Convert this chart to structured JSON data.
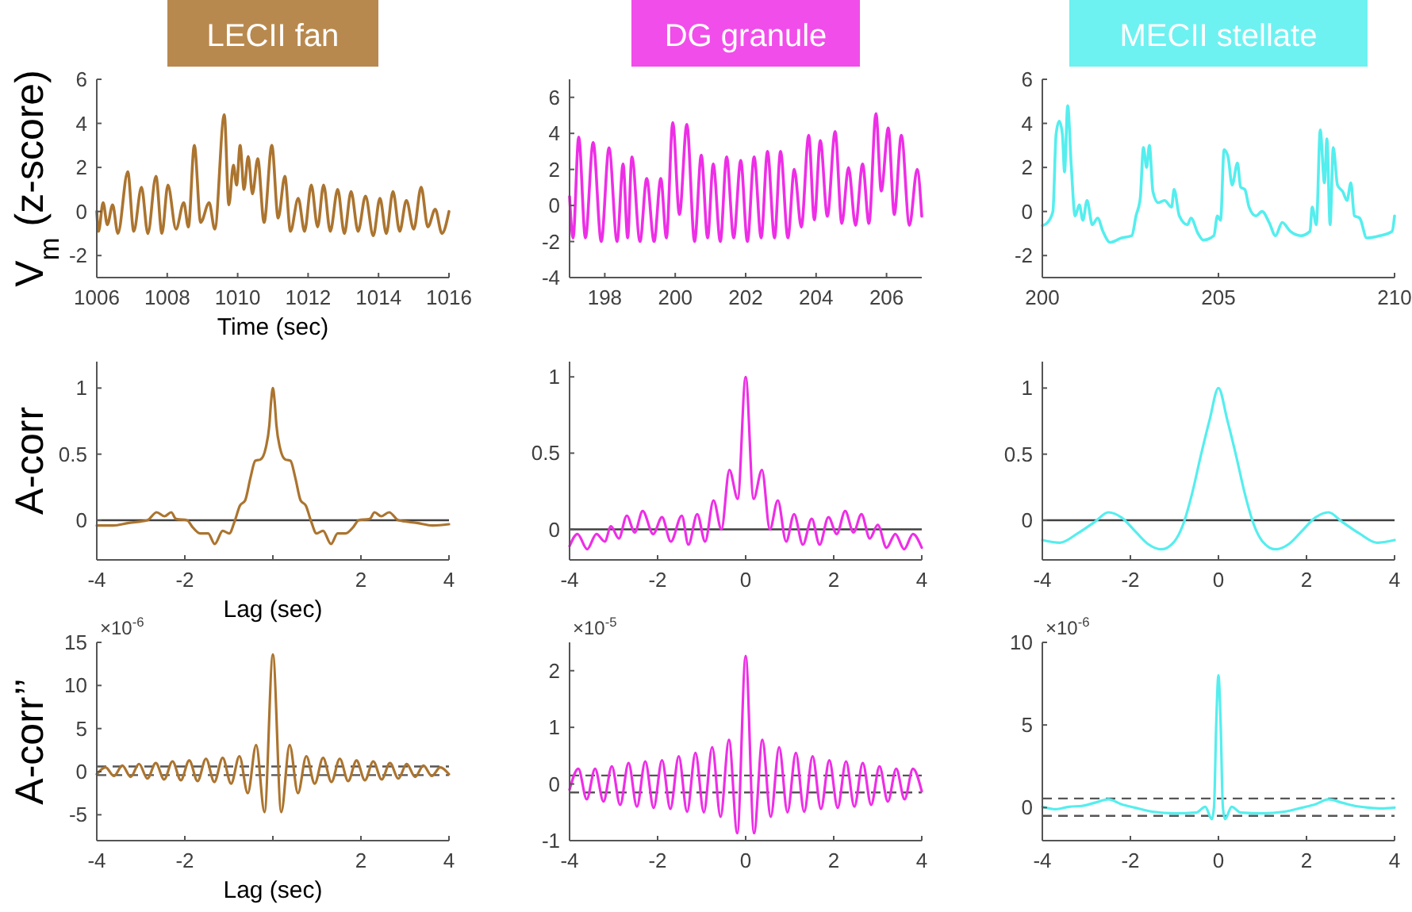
{
  "chart_data": [
    {
      "type": "line",
      "title": "LECII fan",
      "xlabel": "Time (sec)",
      "ylabel": "V$_{m}$ (z-score)",
      "xlim": [
        1006,
        1016
      ],
      "xticks": [
        1006,
        1008,
        1010,
        1012,
        1014,
        1016
      ],
      "ylim": [
        -3,
        6
      ],
      "yticks": [
        -2,
        0,
        2,
        4,
        6
      ],
      "series": [
        {
          "color": "#ab742f",
          "x": [
            1006,
            1006.05,
            1006.18,
            1006.3,
            1006.45,
            1006.6,
            1006.88,
            1007.05,
            1007.27,
            1007.45,
            1007.68,
            1007.85,
            1008.02,
            1008.25,
            1008.47,
            1008.6,
            1008.77,
            1008.95,
            1009.19,
            1009.35,
            1009.62,
            1009.75,
            1009.88,
            1009.97,
            1010.07,
            1010.18,
            1010.3,
            1010.42,
            1010.57,
            1010.75,
            1010.97,
            1011.15,
            1011.34,
            1011.5,
            1011.72,
            1011.9,
            1012.09,
            1012.27,
            1012.44,
            1012.63,
            1012.84,
            1013.03,
            1013.22,
            1013.42,
            1013.63,
            1013.85,
            1014.04,
            1014.22,
            1014.41,
            1014.6,
            1014.79,
            1015,
            1015.21,
            1015.4,
            1015.61,
            1015.8,
            1016
          ],
          "values": [
            0,
            -0.9,
            0.4,
            -0.6,
            0.3,
            -1,
            1.8,
            -0.9,
            1.1,
            -1,
            1.6,
            -1,
            1.2,
            -0.8,
            0.4,
            -0.7,
            3,
            -0.5,
            0.4,
            -0.8,
            4.4,
            0.3,
            2.1,
            1.2,
            3,
            1,
            2.5,
            0.8,
            2.4,
            -0.5,
            3,
            -0.3,
            1.6,
            -0.9,
            0.6,
            -0.9,
            1.2,
            -0.7,
            1.2,
            -0.9,
            1,
            -1,
            0.9,
            -0.9,
            0.7,
            -1.1,
            0.6,
            -1,
            0.9,
            -0.9,
            0.5,
            -0.8,
            1.1,
            -0.7,
            0.1,
            -1,
            0
          ]
        }
      ]
    },
    {
      "type": "line",
      "title": "DG granule",
      "xlim": [
        197,
        207
      ],
      "xticks": [
        198,
        200,
        202,
        204,
        206
      ],
      "ylim": [
        -4,
        7
      ],
      "yticks": [
        -4,
        -2,
        0,
        2,
        4,
        6
      ],
      "series": [
        {
          "color": "#ee2ee6",
          "x": [
            197,
            197.1,
            197.26,
            197.45,
            197.67,
            197.9,
            198.12,
            198.35,
            198.52,
            198.65,
            198.77,
            199,
            199.19,
            199.4,
            199.59,
            199.75,
            199.93,
            200.12,
            200.33,
            200.55,
            200.74,
            200.92,
            201.08,
            201.28,
            201.46,
            201.66,
            201.86,
            202.05,
            202.24,
            202.44,
            202.62,
            202.82,
            202.99,
            203.2,
            203.38,
            203.58,
            203.79,
            203.95,
            204.12,
            204.32,
            204.54,
            204.73,
            204.92,
            205.12,
            205.32,
            205.5,
            205.7,
            205.85,
            206.05,
            206.22,
            206.42,
            206.65,
            206.87,
            207
          ],
          "values": [
            0.5,
            -1.8,
            3.8,
            -1.8,
            3.5,
            -2,
            3.2,
            -2,
            2.3,
            -1.8,
            2.7,
            -2,
            1.5,
            -2,
            1.5,
            -1.8,
            4.6,
            -0.5,
            4.5,
            -2,
            2.8,
            -1.8,
            2.3,
            -2,
            2.7,
            -1.8,
            2.5,
            -2,
            2.7,
            -1.8,
            3,
            -1.8,
            3,
            -1.8,
            2,
            -1.2,
            3.9,
            -0.8,
            3.6,
            -0.6,
            4.1,
            -1,
            2.1,
            -1.1,
            2.3,
            -1,
            5.1,
            0.8,
            4.3,
            -0.5,
            3.9,
            -1.1,
            2,
            -0.6
          ]
        }
      ]
    },
    {
      "type": "line",
      "title": "MECII stellate",
      "xlim": [
        200,
        210
      ],
      "xticks": [
        200,
        205,
        210
      ],
      "ylim": [
        -3,
        6
      ],
      "yticks": [
        -2,
        0,
        2,
        4,
        6
      ],
      "series": [
        {
          "color": "#55eeee",
          "x": [
            200,
            200.15,
            200.3,
            200.39,
            200.48,
            200.57,
            200.63,
            200.72,
            200.82,
            200.93,
            201.05,
            201.15,
            201.27,
            201.42,
            201.57,
            201.72,
            201.92,
            202.25,
            202.54,
            202.66,
            202.78,
            202.87,
            202.96,
            203.04,
            203.14,
            203.29,
            203.47,
            203.67,
            203.74,
            203.89,
            204.12,
            204.22,
            204.42,
            204.57,
            204.87,
            204.97,
            205.06,
            205.16,
            205.27,
            205.39,
            205.54,
            205.63,
            205.75,
            205.87,
            206.06,
            206.24,
            206.44,
            206.62,
            206.81,
            207.04,
            207.34,
            207.6,
            207.66,
            207.78,
            207.89,
            208.01,
            208.08,
            208.17,
            208.26,
            208.38,
            208.53,
            208.65,
            208.76,
            208.86,
            209.01,
            209.21,
            209.58,
            209.93,
            210
          ],
          "values": [
            -0.64,
            -0.5,
            0,
            3.5,
            4.1,
            3.5,
            1.8,
            4.8,
            2.1,
            -0.2,
            0.3,
            -0.4,
            0.5,
            -0.6,
            -0.3,
            -0.9,
            -1.4,
            -1.2,
            -1.1,
            -0.2,
            0.6,
            2.9,
            2,
            3,
            0.9,
            0.4,
            0.5,
            0.2,
            1,
            -0.2,
            -0.6,
            -0.3,
            -1,
            -1.3,
            -1.1,
            -0.2,
            -0.4,
            2.8,
            2.5,
            1.2,
            2.2,
            1.1,
            1,
            0.2,
            -0.2,
            0,
            -0.5,
            -1.1,
            -0.5,
            -0.9,
            -1.1,
            -0.9,
            0.2,
            -0.6,
            3.7,
            1.3,
            3.3,
            -0.6,
            2.9,
            1.2,
            0.9,
            0.5,
            1.3,
            -0.2,
            -0.3,
            -1.2,
            -1.1,
            -0.9,
            -0.2
          ]
        }
      ]
    },
    {
      "type": "line",
      "xlabel": "Lag (sec)",
      "ylabel": "A-corr",
      "xlim": [
        -4,
        4
      ],
      "xticks": [
        -4,
        -2,
        {
          "value": 0,
          "label": null
        },
        2,
        4
      ],
      "ylim": [
        -0.3,
        1.2
      ],
      "yticks": [
        0,
        0.5,
        1
      ],
      "ref_lines": [
        {
          "axis": "y",
          "value": 0,
          "color": "#404040",
          "line_style": "solid"
        }
      ],
      "series": [
        {
          "color": "#ab742f",
          "x": [
            -4,
            -3.63,
            -3.27,
            -2.85,
            -2.64,
            -2.46,
            -2.31,
            -2.2,
            -1.95,
            -1.83,
            -1.65,
            -1.47,
            -1.32,
            -1.14,
            -0.99,
            -0.87,
            -0.75,
            -0.63,
            -0.51,
            -0.4,
            -0.28,
            -0.16,
            -0.08,
            -0.04,
            0,
            0.04,
            0.08,
            0.16,
            0.28,
            0.4,
            0.51,
            0.63,
            0.75,
            0.87,
            0.99,
            1.14,
            1.32,
            1.47,
            1.65,
            1.83,
            1.95,
            2.2,
            2.31,
            2.46,
            2.64,
            2.85,
            3.27,
            3.63,
            4
          ],
          "values": [
            -0.04,
            -0.04,
            -0.02,
            0,
            0.06,
            0.03,
            0.06,
            0.01,
            0,
            -0.05,
            -0.1,
            -0.1,
            -0.18,
            -0.08,
            -0.1,
            -0.01,
            0.11,
            0.15,
            0.32,
            0.45,
            0.46,
            0.55,
            0.72,
            0.9,
            1,
            0.9,
            0.72,
            0.55,
            0.46,
            0.45,
            0.32,
            0.15,
            0.11,
            -0.01,
            -0.1,
            -0.08,
            -0.18,
            -0.1,
            -0.1,
            -0.05,
            0,
            0.01,
            0.06,
            0.03,
            0.06,
            0,
            -0.02,
            -0.04,
            -0.03
          ]
        }
      ]
    },
    {
      "type": "line",
      "xlim": [
        -4,
        4
      ],
      "xticks": [
        -4,
        -2,
        0,
        2,
        4
      ],
      "ylim": [
        -0.2,
        1.1
      ],
      "yticks": [
        0,
        0.5,
        1
      ],
      "ref_lines": [
        {
          "axis": "y",
          "value": 0,
          "color": "#404040",
          "line_style": "solid"
        }
      ],
      "series": [
        {
          "color": "#ee2ee6",
          "x": [
            -4,
            -3.82,
            -3.6,
            -3.39,
            -3.2,
            -3.06,
            -2.88,
            -2.7,
            -2.52,
            -2.34,
            -2.1,
            -1.9,
            -1.7,
            -1.45,
            -1.3,
            -1.1,
            -0.92,
            -0.73,
            -0.55,
            -0.37,
            -0.18,
            0,
            0.18,
            0.37,
            0.55,
            0.73,
            0.92,
            1.1,
            1.3,
            1.5,
            1.68,
            1.88,
            2.07,
            2.26,
            2.45,
            2.63,
            2.82,
            3,
            3.2,
            3.4,
            3.6,
            3.8,
            4
          ],
          "values": [
            -0.11,
            -0.03,
            -0.13,
            -0.03,
            -0.08,
            0.02,
            -0.06,
            0.09,
            -0.02,
            0.12,
            -0.03,
            0.08,
            -0.08,
            0.09,
            -0.1,
            0.1,
            -0.08,
            0.19,
            0,
            0.39,
            0.2,
            1,
            0.2,
            0.39,
            0,
            0.19,
            -0.08,
            0.1,
            -0.1,
            0.07,
            -0.1,
            0.08,
            -0.03,
            0.12,
            -0.02,
            0.1,
            -0.06,
            0.03,
            -0.12,
            -0.03,
            -0.13,
            -0.03,
            -0.12
          ]
        }
      ]
    },
    {
      "type": "line",
      "xlim": [
        -4,
        4
      ],
      "xticks": [
        -4,
        -2,
        0,
        2,
        4
      ],
      "ylim": [
        -0.3,
        1.2
      ],
      "yticks": [
        0,
        0.5,
        1
      ],
      "ref_lines": [
        {
          "axis": "y",
          "value": 0,
          "color": "#404040",
          "line_style": "solid"
        }
      ],
      "series": [
        {
          "color": "#55eeee",
          "x": [
            -4,
            -3.6,
            -3.2,
            -2.8,
            -2.5,
            -2.2,
            -1.9,
            -1.6,
            -1.3,
            -1,
            -0.8,
            -0.6,
            -0.4,
            -0.2,
            0,
            0.2,
            0.4,
            0.6,
            0.8,
            1,
            1.3,
            1.6,
            1.9,
            2.2,
            2.5,
            2.8,
            3.2,
            3.6,
            4
          ],
          "values": [
            -0.15,
            -0.17,
            -0.1,
            -0.01,
            0.06,
            0.02,
            -0.08,
            -0.18,
            -0.22,
            -0.16,
            -0.03,
            0.2,
            0.49,
            0.76,
            1,
            0.76,
            0.49,
            0.2,
            -0.03,
            -0.16,
            -0.22,
            -0.18,
            -0.08,
            0.02,
            0.06,
            -0.01,
            -0.1,
            -0.17,
            -0.15
          ]
        }
      ]
    },
    {
      "type": "line",
      "xlabel": "Lag (sec)",
      "ylabel": "A-corr’’",
      "annotations": [
        "×10$^{-6}$"
      ],
      "xlim": [
        -4,
        4
      ],
      "xticks": [
        -4,
        -2,
        {
          "value": 0,
          "label": null
        },
        2,
        4
      ],
      "ylim": [
        -8,
        15
      ],
      "yticks": [
        -5,
        0,
        5,
        10,
        15
      ],
      "ref_lines": [
        {
          "axis": "y",
          "value": 0.6,
          "color": "#555555",
          "line_style": "dashed"
        },
        {
          "axis": "y",
          "value": -0.4,
          "color": "#555555",
          "line_style": "dashed"
        }
      ],
      "series": [
        {
          "color": "#ab742f",
          "x": [
            -4,
            -3.8,
            -3.61,
            -3.42,
            -3.23,
            -3.04,
            -2.85,
            -2.66,
            -2.47,
            -2.28,
            -2.09,
            -1.9,
            -1.71,
            -1.52,
            -1.33,
            -1.14,
            -0.95,
            -0.76,
            -0.57,
            -0.38,
            -0.19,
            0,
            0.19,
            0.38,
            0.57,
            0.76,
            0.95,
            1.14,
            1.33,
            1.52,
            1.71,
            1.9,
            2.09,
            2.28,
            2.47,
            2.66,
            2.85,
            3.04,
            3.23,
            3.42,
            3.61,
            3.8,
            4
          ],
          "values": [
            -0.3,
            0.5,
            -0.5,
            0.7,
            -0.6,
            0.9,
            -0.8,
            1,
            -0.9,
            1.2,
            -1,
            1.3,
            -1.1,
            1.5,
            -1.2,
            1.6,
            -1.4,
            1.8,
            -2.5,
            3.1,
            -4.7,
            13.6,
            -4.7,
            3.1,
            -2.5,
            1.8,
            -1.4,
            1.6,
            -1.2,
            1.5,
            -1.1,
            1.3,
            -1,
            1.2,
            -0.9,
            1,
            -0.8,
            0.9,
            -0.6,
            0.7,
            -0.5,
            0.5,
            -0.3
          ]
        }
      ]
    },
    {
      "type": "line",
      "annotations": [
        "×10$^{-5}$"
      ],
      "xlim": [
        -4,
        4
      ],
      "xticks": [
        -4,
        -2,
        0,
        2,
        4
      ],
      "ylim": [
        -1,
        2.5
      ],
      "yticks": [
        -1,
        0,
        1,
        2
      ],
      "ref_lines": [
        {
          "axis": "y",
          "value": 0.15,
          "color": "#555555",
          "line_style": "dashed"
        },
        {
          "axis": "y",
          "value": -0.15,
          "color": "#555555",
          "line_style": "dashed"
        }
      ],
      "series": [
        {
          "color": "#ee2ee6",
          "x": [
            -4,
            -3.8,
            -3.61,
            -3.42,
            -3.23,
            -3.04,
            -2.85,
            -2.66,
            -2.47,
            -2.28,
            -2.09,
            -1.9,
            -1.71,
            -1.52,
            -1.33,
            -1.14,
            -0.95,
            -0.76,
            -0.57,
            -0.38,
            -0.19,
            0,
            0.19,
            0.38,
            0.57,
            0.76,
            0.95,
            1.14,
            1.33,
            1.52,
            1.71,
            1.9,
            2.09,
            2.28,
            2.47,
            2.66,
            2.85,
            3.04,
            3.23,
            3.42,
            3.61,
            3.8,
            4
          ],
          "values": [
            -0.1,
            0.27,
            -0.27,
            0.27,
            -0.31,
            0.31,
            -0.37,
            0.37,
            -0.4,
            0.4,
            -0.42,
            0.42,
            -0.44,
            0.49,
            -0.49,
            0.55,
            -0.5,
            0.65,
            -0.58,
            0.78,
            -0.87,
            2.26,
            -0.87,
            0.78,
            -0.58,
            0.65,
            -0.5,
            0.55,
            -0.49,
            0.49,
            -0.44,
            0.42,
            -0.42,
            0.4,
            -0.4,
            0.37,
            -0.37,
            0.31,
            -0.31,
            0.27,
            -0.27,
            0.27,
            -0.13
          ]
        }
      ]
    },
    {
      "type": "line",
      "annotations": [
        "×10$^{-6}$"
      ],
      "xlim": [
        -4,
        4
      ],
      "xticks": [
        -4,
        -2,
        0,
        2,
        4
      ],
      "ylim": [
        -2,
        10
      ],
      "yticks": [
        0,
        5,
        10
      ],
      "ref_lines": [
        {
          "axis": "y",
          "value": 0.55,
          "color": "#555555",
          "line_style": "dashed"
        },
        {
          "axis": "y",
          "value": -0.5,
          "color": "#555555",
          "line_style": "dashed"
        }
      ],
      "series": [
        {
          "color": "#55eeee",
          "x": [
            -4,
            -3.7,
            -3.4,
            -3.1,
            -2.8,
            -2.5,
            -2.2,
            -1.9,
            -1.5,
            -1,
            -0.5,
            -0.3,
            -0.15,
            -0.1,
            -0.05,
            0,
            0.05,
            0.1,
            0.15,
            0.3,
            0.5,
            1,
            1.5,
            1.9,
            2.2,
            2.5,
            2.8,
            3.1,
            3.4,
            3.7,
            4
          ],
          "values": [
            0.05,
            -0.1,
            0.05,
            0.1,
            0.3,
            0.5,
            0.2,
            0,
            -0.25,
            -0.35,
            -0.3,
            0.05,
            -0.7,
            0.05,
            5.1,
            8,
            5.1,
            0.05,
            -0.7,
            0.05,
            -0.3,
            -0.35,
            -0.25,
            0,
            0.2,
            0.5,
            0.3,
            0.1,
            0,
            -0.05,
            0
          ]
        }
      ]
    }
  ]
}
